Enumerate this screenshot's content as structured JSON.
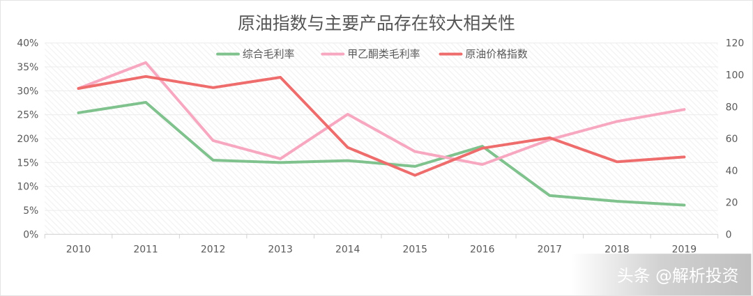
{
  "chart_data": {
    "type": "line",
    "title": "原油指数与主要产品存在较大相关性",
    "categories": [
      "2010",
      "2011",
      "2012",
      "2013",
      "2014",
      "2015",
      "2016",
      "2017",
      "2018",
      "2019"
    ],
    "y_left": {
      "ticks": [
        "0%",
        "5%",
        "10%",
        "15%",
        "20%",
        "25%",
        "30%",
        "35%",
        "40%"
      ],
      "range": [
        0,
        40
      ]
    },
    "y_right": {
      "ticks": [
        "0",
        "20",
        "40",
        "60",
        "80",
        "100",
        "120"
      ],
      "range": [
        0,
        120
      ]
    },
    "series": [
      {
        "name": "综合毛利率",
        "axis": "left",
        "color": "#80c28e",
        "values": [
          25.4,
          27.6,
          15.5,
          15.0,
          15.4,
          14.2,
          18.4,
          8.1,
          6.9,
          6.1
        ]
      },
      {
        "name": "甲乙酮类毛利率",
        "axis": "left",
        "color": "#f7a8c0",
        "values": [
          30.5,
          35.9,
          19.6,
          15.8,
          25.1,
          17.3,
          14.6,
          19.8,
          23.6,
          26.1
        ]
      },
      {
        "name": "原油价格指数",
        "axis": "right",
        "color": "#ef6c6c",
        "values": [
          91.5,
          99.0,
          92.0,
          98.5,
          54.5,
          37.0,
          54.0,
          60.5,
          45.5,
          48.5
        ]
      }
    ],
    "grid": true,
    "legend_position": "top"
  },
  "watermark": "头条 @解析投资"
}
